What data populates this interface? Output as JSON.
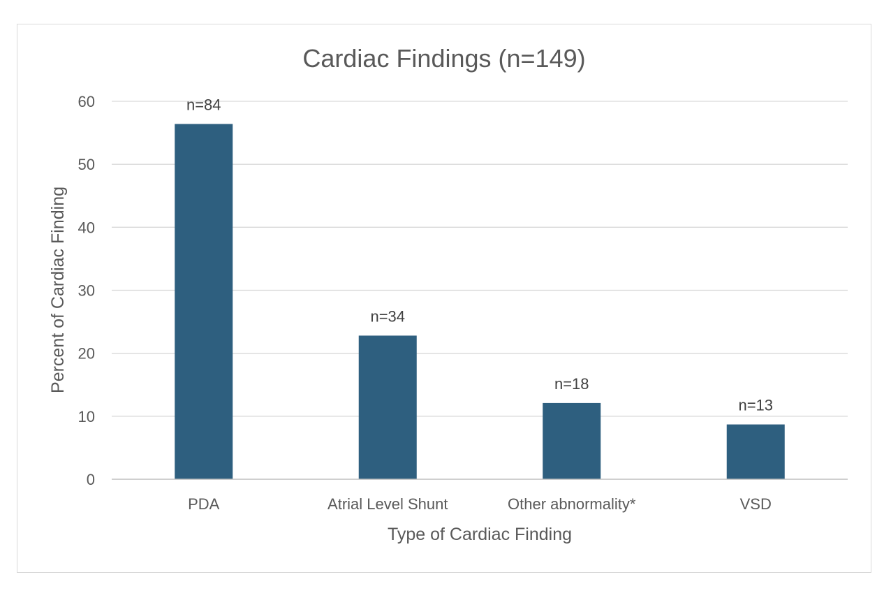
{
  "chart_data": {
    "type": "bar",
    "title": "Cardiac Findings (n=149)",
    "xlabel": "Type of Cardiac Finding",
    "ylabel": "Percent of Cardiac Finding",
    "categories": [
      "PDA",
      "Atrial Level Shunt",
      "Other abnormality*",
      "VSD"
    ],
    "values": [
      56.4,
      22.8,
      12.1,
      8.7
    ],
    "data_labels": [
      "n=84",
      "n=34",
      "n=18",
      "n=13"
    ],
    "ylim": [
      0,
      60
    ],
    "yticks": [
      0,
      10,
      20,
      30,
      40,
      50,
      60
    ],
    "grid": true,
    "legend": "none",
    "bar_color": "#2e5f7f"
  }
}
